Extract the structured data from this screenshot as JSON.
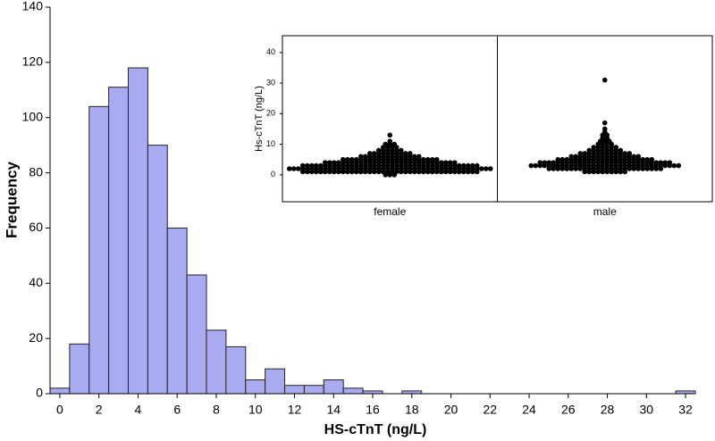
{
  "chart_data": [
    {
      "type": "histogram",
      "xlabel": "HS-cTnT (ng/L)",
      "ylabel": "Frequency",
      "bins": [
        -0.5,
        0.5,
        1.5,
        2.5,
        3.5,
        4.5,
        5.5,
        6.5,
        7.5,
        8.5,
        9.5,
        10.5,
        11.5,
        12.5,
        13.5,
        14.5,
        15.5,
        16.5,
        17.5,
        18.5,
        19.5,
        20.5,
        21.5,
        22.5,
        23.5,
        24.5,
        25.5,
        26.5,
        27.5,
        28.5,
        29.5,
        30.5,
        31.5,
        32.5
      ],
      "values": [
        2,
        18,
        104,
        111,
        118,
        90,
        60,
        43,
        23,
        17,
        5,
        9,
        3,
        3,
        5,
        2,
        1,
        0,
        1,
        0,
        0,
        0,
        0,
        0,
        0,
        0,
        0,
        0,
        0,
        0,
        0,
        0,
        1
      ],
      "color": "#aaaaf0",
      "xlim": [
        -0.5,
        32.5
      ],
      "xticks": [
        0,
        2,
        4,
        6,
        8,
        10,
        12,
        14,
        16,
        18,
        20,
        22,
        24,
        26,
        28,
        30,
        32
      ],
      "ylim": [
        0,
        140
      ],
      "yticks": [
        0,
        20,
        40,
        60,
        80,
        100,
        120,
        140
      ],
      "grid": false
    },
    {
      "type": "beeswarm",
      "ylabel": "Hs-cTnT (ng/L)",
      "color": "#000000",
      "ylim": [
        -8.8,
        45.5
      ],
      "yticks": [
        0,
        10,
        20,
        30,
        40
      ],
      "groups": [
        {
          "name": "female",
          "levels": [
            0,
            1,
            2,
            3,
            4,
            5,
            6,
            7,
            8,
            9,
            10,
            11,
            13
          ],
          "counts": [
            3,
            40,
            46,
            40,
            30,
            22,
            14,
            10,
            6,
            4,
            3,
            1,
            1
          ]
        },
        {
          "name": "male",
          "levels": [
            1,
            2,
            3,
            4,
            5,
            6,
            7,
            8,
            9,
            10,
            11,
            12,
            13,
            14,
            15,
            17,
            31
          ],
          "counts": [
            10,
            26,
            34,
            30,
            22,
            16,
            12,
            8,
            6,
            4,
            3,
            2,
            2,
            1,
            1,
            1,
            1
          ]
        }
      ]
    }
  ]
}
